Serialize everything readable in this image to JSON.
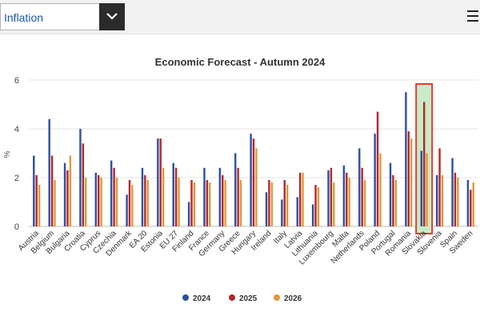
{
  "header": {
    "selected_indicator": "Inflation",
    "dropdown_icon": "chevron-down-icon",
    "menu_icon": "hamburger-menu-icon"
  },
  "colors": {
    "series_2024": "#2f4f9e",
    "series_2025": "#b5262c",
    "series_2026": "#e0993a",
    "highlight_fill": "#c8ecc8",
    "highlight_border": "#e53935",
    "grid": "#e6e6e6"
  },
  "chart_data": {
    "type": "bar",
    "title": "Economic Forecast - Autumn 2024",
    "xlabel": "",
    "ylabel": "%",
    "ylim": [
      0,
      6
    ],
    "yticks": [
      "0",
      "2",
      "4",
      "6"
    ],
    "highlighted_category": "Slovakia",
    "legend_position": "bottom-center",
    "categories": [
      "Austria",
      "Belgium",
      "Bulgaria",
      "Croatia",
      "Cyprus",
      "Czechia",
      "Denmark",
      "EA 20",
      "Estonia",
      "EU 27",
      "Finland",
      "France",
      "Germany",
      "Greece",
      "Hungary",
      "Ireland",
      "Italy",
      "Latvia",
      "Lithuania",
      "Luxembourg",
      "Malta",
      "Netherlands",
      "Poland",
      "Portugal",
      "Romania",
      "Slovakia",
      "Slovenia",
      "Spain",
      "Sweden"
    ],
    "series": [
      {
        "name": "2024",
        "values": [
          2.9,
          4.4,
          2.6,
          4.0,
          2.2,
          2.7,
          1.3,
          2.4,
          3.6,
          2.6,
          1.0,
          2.4,
          2.4,
          3.0,
          3.8,
          1.4,
          1.1,
          1.2,
          0.9,
          2.3,
          2.5,
          3.2,
          3.8,
          2.6,
          5.5,
          3.1,
          2.1,
          2.8,
          1.9
        ]
      },
      {
        "name": "2025",
        "values": [
          2.1,
          2.9,
          2.3,
          3.4,
          2.1,
          2.4,
          1.9,
          2.1,
          3.6,
          2.4,
          1.9,
          1.9,
          2.1,
          2.4,
          3.6,
          1.9,
          1.9,
          2.2,
          1.7,
          2.4,
          2.2,
          2.4,
          4.7,
          2.1,
          3.9,
          5.1,
          3.2,
          2.2,
          1.5
        ]
      },
      {
        "name": "2026",
        "values": [
          1.7,
          1.9,
          2.9,
          2.0,
          2.0,
          2.0,
          1.7,
          1.9,
          2.4,
          2.0,
          1.8,
          1.8,
          1.9,
          1.9,
          3.2,
          1.8,
          1.7,
          2.2,
          1.6,
          1.8,
          2.0,
          1.9,
          3.0,
          1.9,
          3.6,
          3.0,
          2.1,
          2.0,
          1.8
        ]
      }
    ]
  }
}
